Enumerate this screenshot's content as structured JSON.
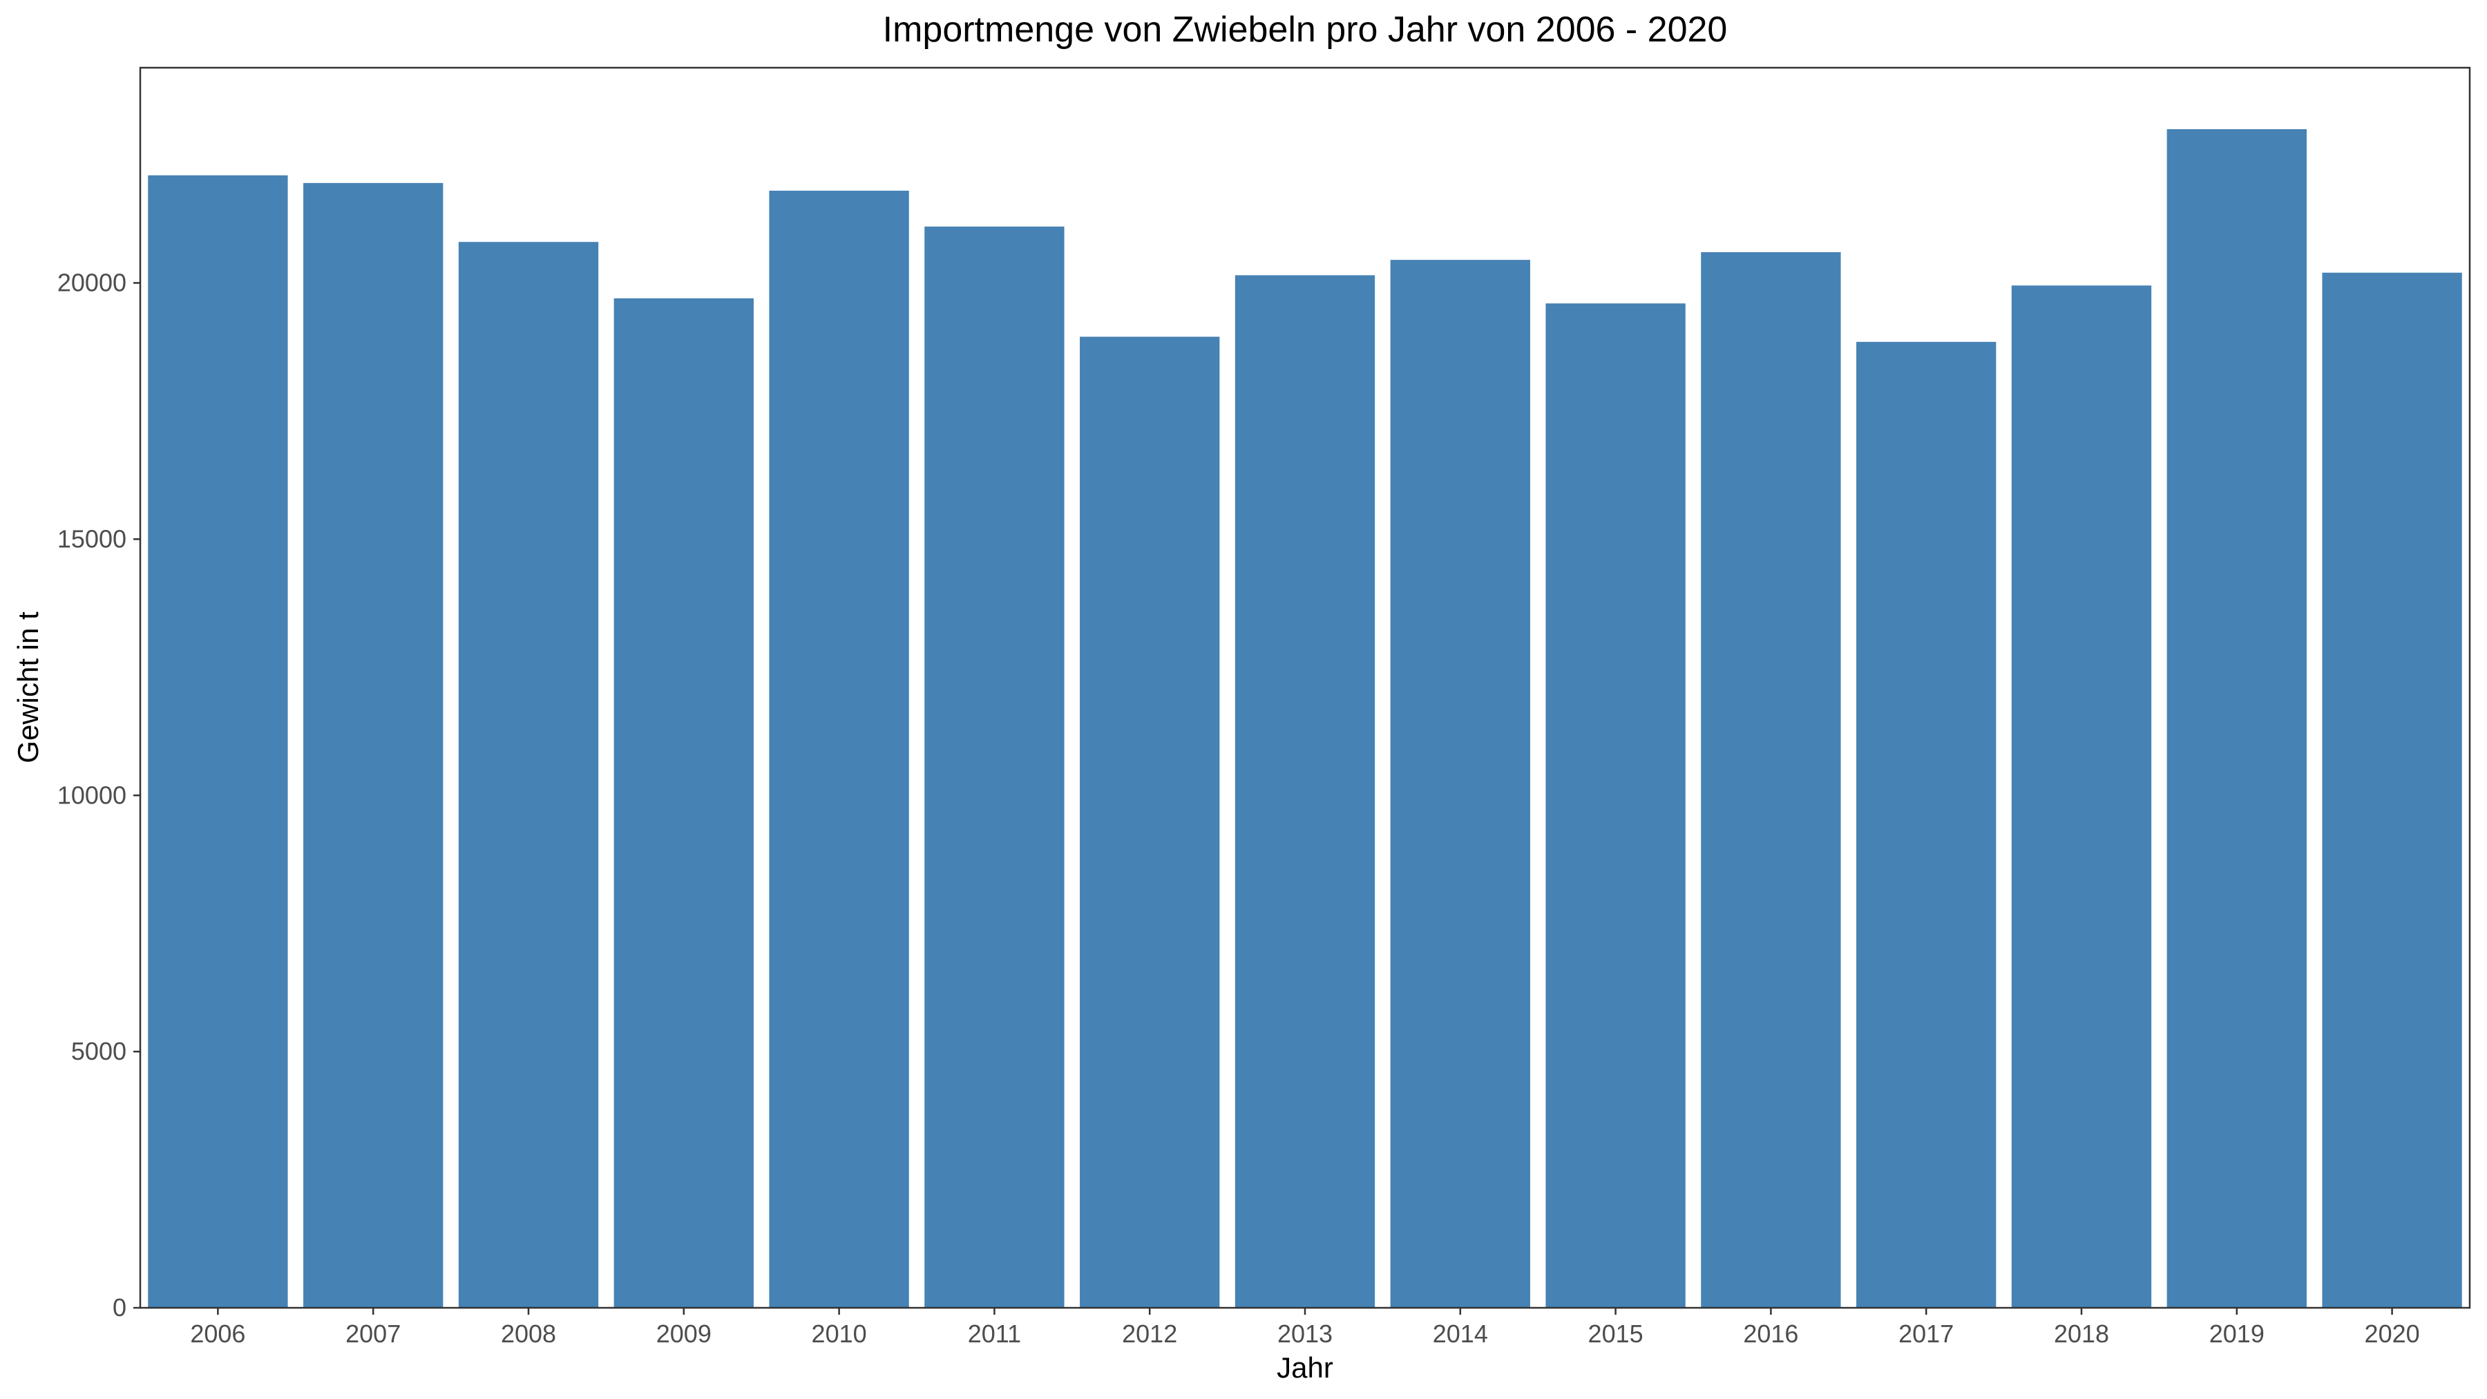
{
  "chart_data": {
    "type": "bar",
    "title": "Importmenge von Zwiebeln pro Jahr von 2006 - 2020",
    "xlabel": "Jahr",
    "ylabel": "Gewicht in t",
    "categories": [
      "2006",
      "2007",
      "2008",
      "2009",
      "2010",
      "2011",
      "2012",
      "2013",
      "2014",
      "2015",
      "2016",
      "2017",
      "2018",
      "2019",
      "2020"
    ],
    "values": [
      22100,
      21950,
      20800,
      19700,
      21800,
      21100,
      18950,
      20150,
      20450,
      19600,
      20600,
      18850,
      19950,
      23000,
      20200
    ],
    "yticks": [
      0,
      5000,
      10000,
      15000,
      20000
    ],
    "ylim": [
      0,
      24200
    ],
    "grid": false,
    "legend": "none",
    "bar_color": "#4682B4"
  }
}
